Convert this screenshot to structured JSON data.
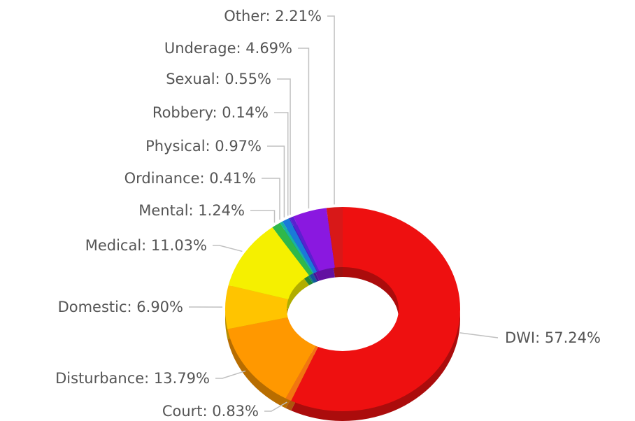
{
  "chart_data": {
    "type": "pie",
    "variant": "donut-3d",
    "title": "",
    "legend": "none",
    "slices": [
      {
        "name": "DWI",
        "value": 57.24,
        "label": "DWI: 57.24%",
        "color": "#ee1010"
      },
      {
        "name": "Court",
        "value": 0.83,
        "label": "Court: 0.83%",
        "color": "#f27510"
      },
      {
        "name": "Disturbance",
        "value": 13.79,
        "label": "Disturbance: 13.79%",
        "color": "#ff9800"
      },
      {
        "name": "Domestic",
        "value": 6.9,
        "label": "Domestic: 6.90%",
        "color": "#ffc400"
      },
      {
        "name": "Medical",
        "value": 11.03,
        "label": "Medical: 11.03%",
        "color": "#f5f000"
      },
      {
        "name": "Mental",
        "value": 1.24,
        "label": "Mental: 1.24%",
        "color": "#2fb84a"
      },
      {
        "name": "Ordinance",
        "value": 0.41,
        "label": "Ordinance: 0.41%",
        "color": "#18b4a0"
      },
      {
        "name": "Physical",
        "value": 0.97,
        "label": "Physical: 0.97%",
        "color": "#1a7ad8"
      },
      {
        "name": "Robbery",
        "value": 0.14,
        "label": "Robbery: 0.14%",
        "color": "#3030c8"
      },
      {
        "name": "Sexual",
        "value": 0.55,
        "label": "Sexual: 0.55%",
        "color": "#5a20d0"
      },
      {
        "name": "Underage",
        "value": 4.69,
        "label": "Underage: 4.69%",
        "color": "#8a18e0"
      },
      {
        "name": "Other",
        "value": 2.21,
        "label": "Other: 2.21%",
        "color": "#d81818"
      }
    ]
  }
}
